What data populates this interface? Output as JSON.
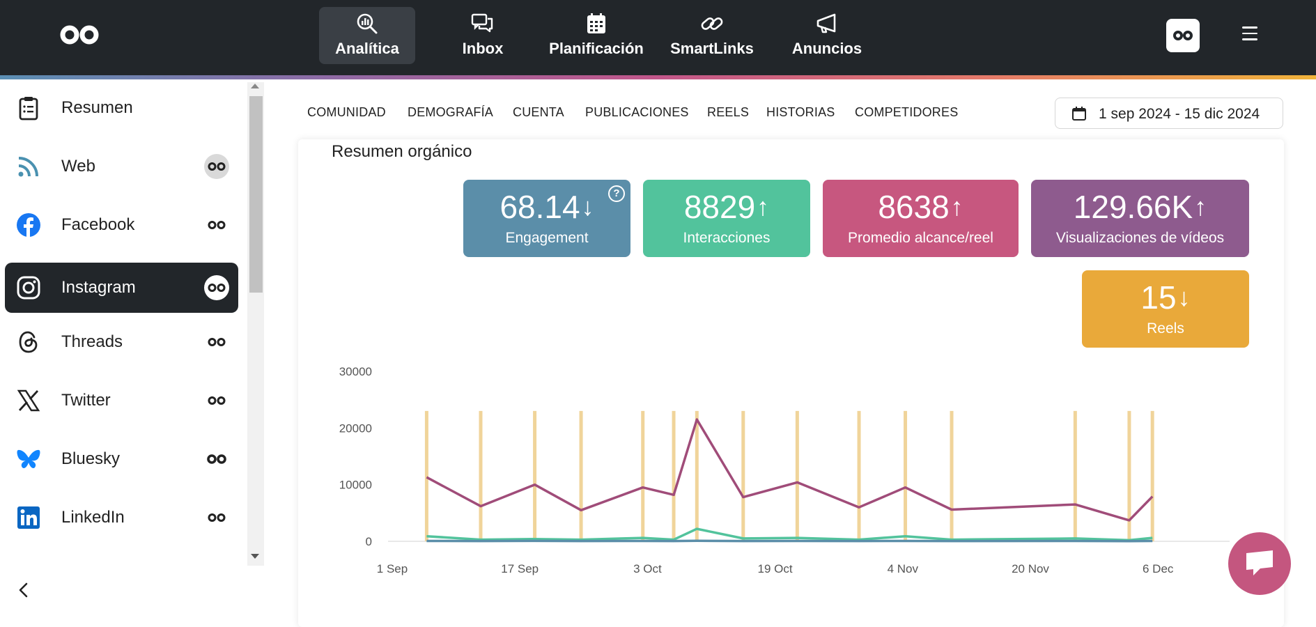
{
  "topnav": {
    "items": [
      {
        "label": "Analítica",
        "icon": "analytics-icon",
        "active": true
      },
      {
        "label": "Inbox",
        "icon": "inbox-icon",
        "active": false
      },
      {
        "label": "Planificación",
        "icon": "calendar-icon",
        "active": false
      },
      {
        "label": "SmartLinks",
        "icon": "link-icon",
        "active": false
      },
      {
        "label": "Anuncios",
        "icon": "megaphone-icon",
        "active": false
      }
    ]
  },
  "sidebar": {
    "items": [
      {
        "label": "Resumen",
        "icon": "clipboard-icon",
        "active": false
      },
      {
        "label": "Web",
        "icon": "rss-icon",
        "active": false
      },
      {
        "label": "Facebook",
        "icon": "facebook-icon",
        "active": false
      },
      {
        "label": "Instagram",
        "icon": "instagram-icon",
        "active": true
      },
      {
        "label": "Threads",
        "icon": "threads-icon",
        "active": false
      },
      {
        "label": "Twitter",
        "icon": "x-icon",
        "active": false
      },
      {
        "label": "Bluesky",
        "icon": "bluesky-icon",
        "active": false
      },
      {
        "label": "LinkedIn",
        "icon": "linkedin-icon",
        "active": false
      }
    ]
  },
  "tabs": [
    "COMUNIDAD",
    "DEMOGRAFÍA",
    "CUENTA",
    "PUBLICACIONES",
    "REELS",
    "HISTORIAS",
    "COMPETIDORES"
  ],
  "date_range": "1 sep 2024 - 15 dic 2024",
  "card": {
    "title": "Resumen orgánico",
    "metrics": [
      {
        "value": "68.14",
        "trend": "↓",
        "label": "Engagement",
        "color": "#5b8ea9",
        "help": "?"
      },
      {
        "value": "8829",
        "trend": "↑",
        "label": "Interacciones",
        "color": "#52c39c"
      },
      {
        "value": "8638",
        "trend": "↑",
        "label": "Promedio alcance/reel",
        "color": "#c7577f"
      },
      {
        "value": "129.66K",
        "trend": "↑",
        "label": "Visualizaciones de vídeos",
        "color": "#8e5b8e"
      },
      {
        "value": "15",
        "trend": "↓",
        "label": "Reels",
        "color": "#e9a93a"
      }
    ]
  },
  "chart_data": {
    "type": "line",
    "yticks": [
      "30000",
      "20000",
      "10000",
      "0"
    ],
    "ylim": [
      0,
      30000
    ],
    "xticks": [
      "1 Sep",
      "17 Sep",
      "3 Oct",
      "19 Oct",
      "4 Nov",
      "20 Nov",
      "6 Dec"
    ],
    "xlim": [
      "2024-08-29",
      "2024-12-16"
    ],
    "reel_bars": {
      "color": "#f0d49a",
      "dates": [
        "2024-09-03",
        "2024-09-10",
        "2024-09-17",
        "2024-09-23",
        "2024-10-01",
        "2024-10-05",
        "2024-10-08",
        "2024-10-14",
        "2024-10-21",
        "2024-10-29",
        "2024-11-04",
        "2024-11-10",
        "2024-11-26",
        "2024-12-03",
        "2024-12-06"
      ],
      "values": [
        23000,
        23000,
        23000,
        23000,
        23000,
        23000,
        23000,
        23000,
        23000,
        23000,
        23000,
        23000,
        23000,
        23000,
        23000
      ]
    },
    "series": [
      {
        "color": "#a04c79",
        "x": [
          "2024-09-03",
          "2024-09-10",
          "2024-09-17",
          "2024-09-23",
          "2024-10-01",
          "2024-10-05",
          "2024-10-08",
          "2024-10-14",
          "2024-10-21",
          "2024-10-29",
          "2024-11-04",
          "2024-11-10",
          "2024-11-26",
          "2024-12-03",
          "2024-12-06"
        ],
        "y": [
          11300,
          6200,
          10000,
          5500,
          9500,
          8200,
          21500,
          7800,
          10400,
          6000,
          9500,
          5600,
          6500,
          3700,
          7900
        ]
      },
      {
        "color": "#52c39c",
        "x": [
          "2024-09-03",
          "2024-09-10",
          "2024-09-17",
          "2024-09-23",
          "2024-10-01",
          "2024-10-05",
          "2024-10-08",
          "2024-10-14",
          "2024-10-21",
          "2024-10-29",
          "2024-11-04",
          "2024-11-10",
          "2024-11-26",
          "2024-12-03",
          "2024-12-06"
        ],
        "y": [
          900,
          300,
          400,
          300,
          600,
          300,
          2200,
          500,
          600,
          300,
          900,
          300,
          500,
          200,
          600
        ]
      },
      {
        "color": "#5b8ea9",
        "x": [
          "2024-09-03",
          "2024-09-10",
          "2024-09-17",
          "2024-09-23",
          "2024-10-01",
          "2024-10-05",
          "2024-10-08",
          "2024-10-14",
          "2024-10-21",
          "2024-10-29",
          "2024-11-04",
          "2024-11-10",
          "2024-11-26",
          "2024-12-03",
          "2024-12-06"
        ],
        "y": [
          60,
          50,
          70,
          50,
          60,
          50,
          90,
          50,
          60,
          50,
          60,
          50,
          60,
          40,
          60
        ]
      }
    ]
  }
}
